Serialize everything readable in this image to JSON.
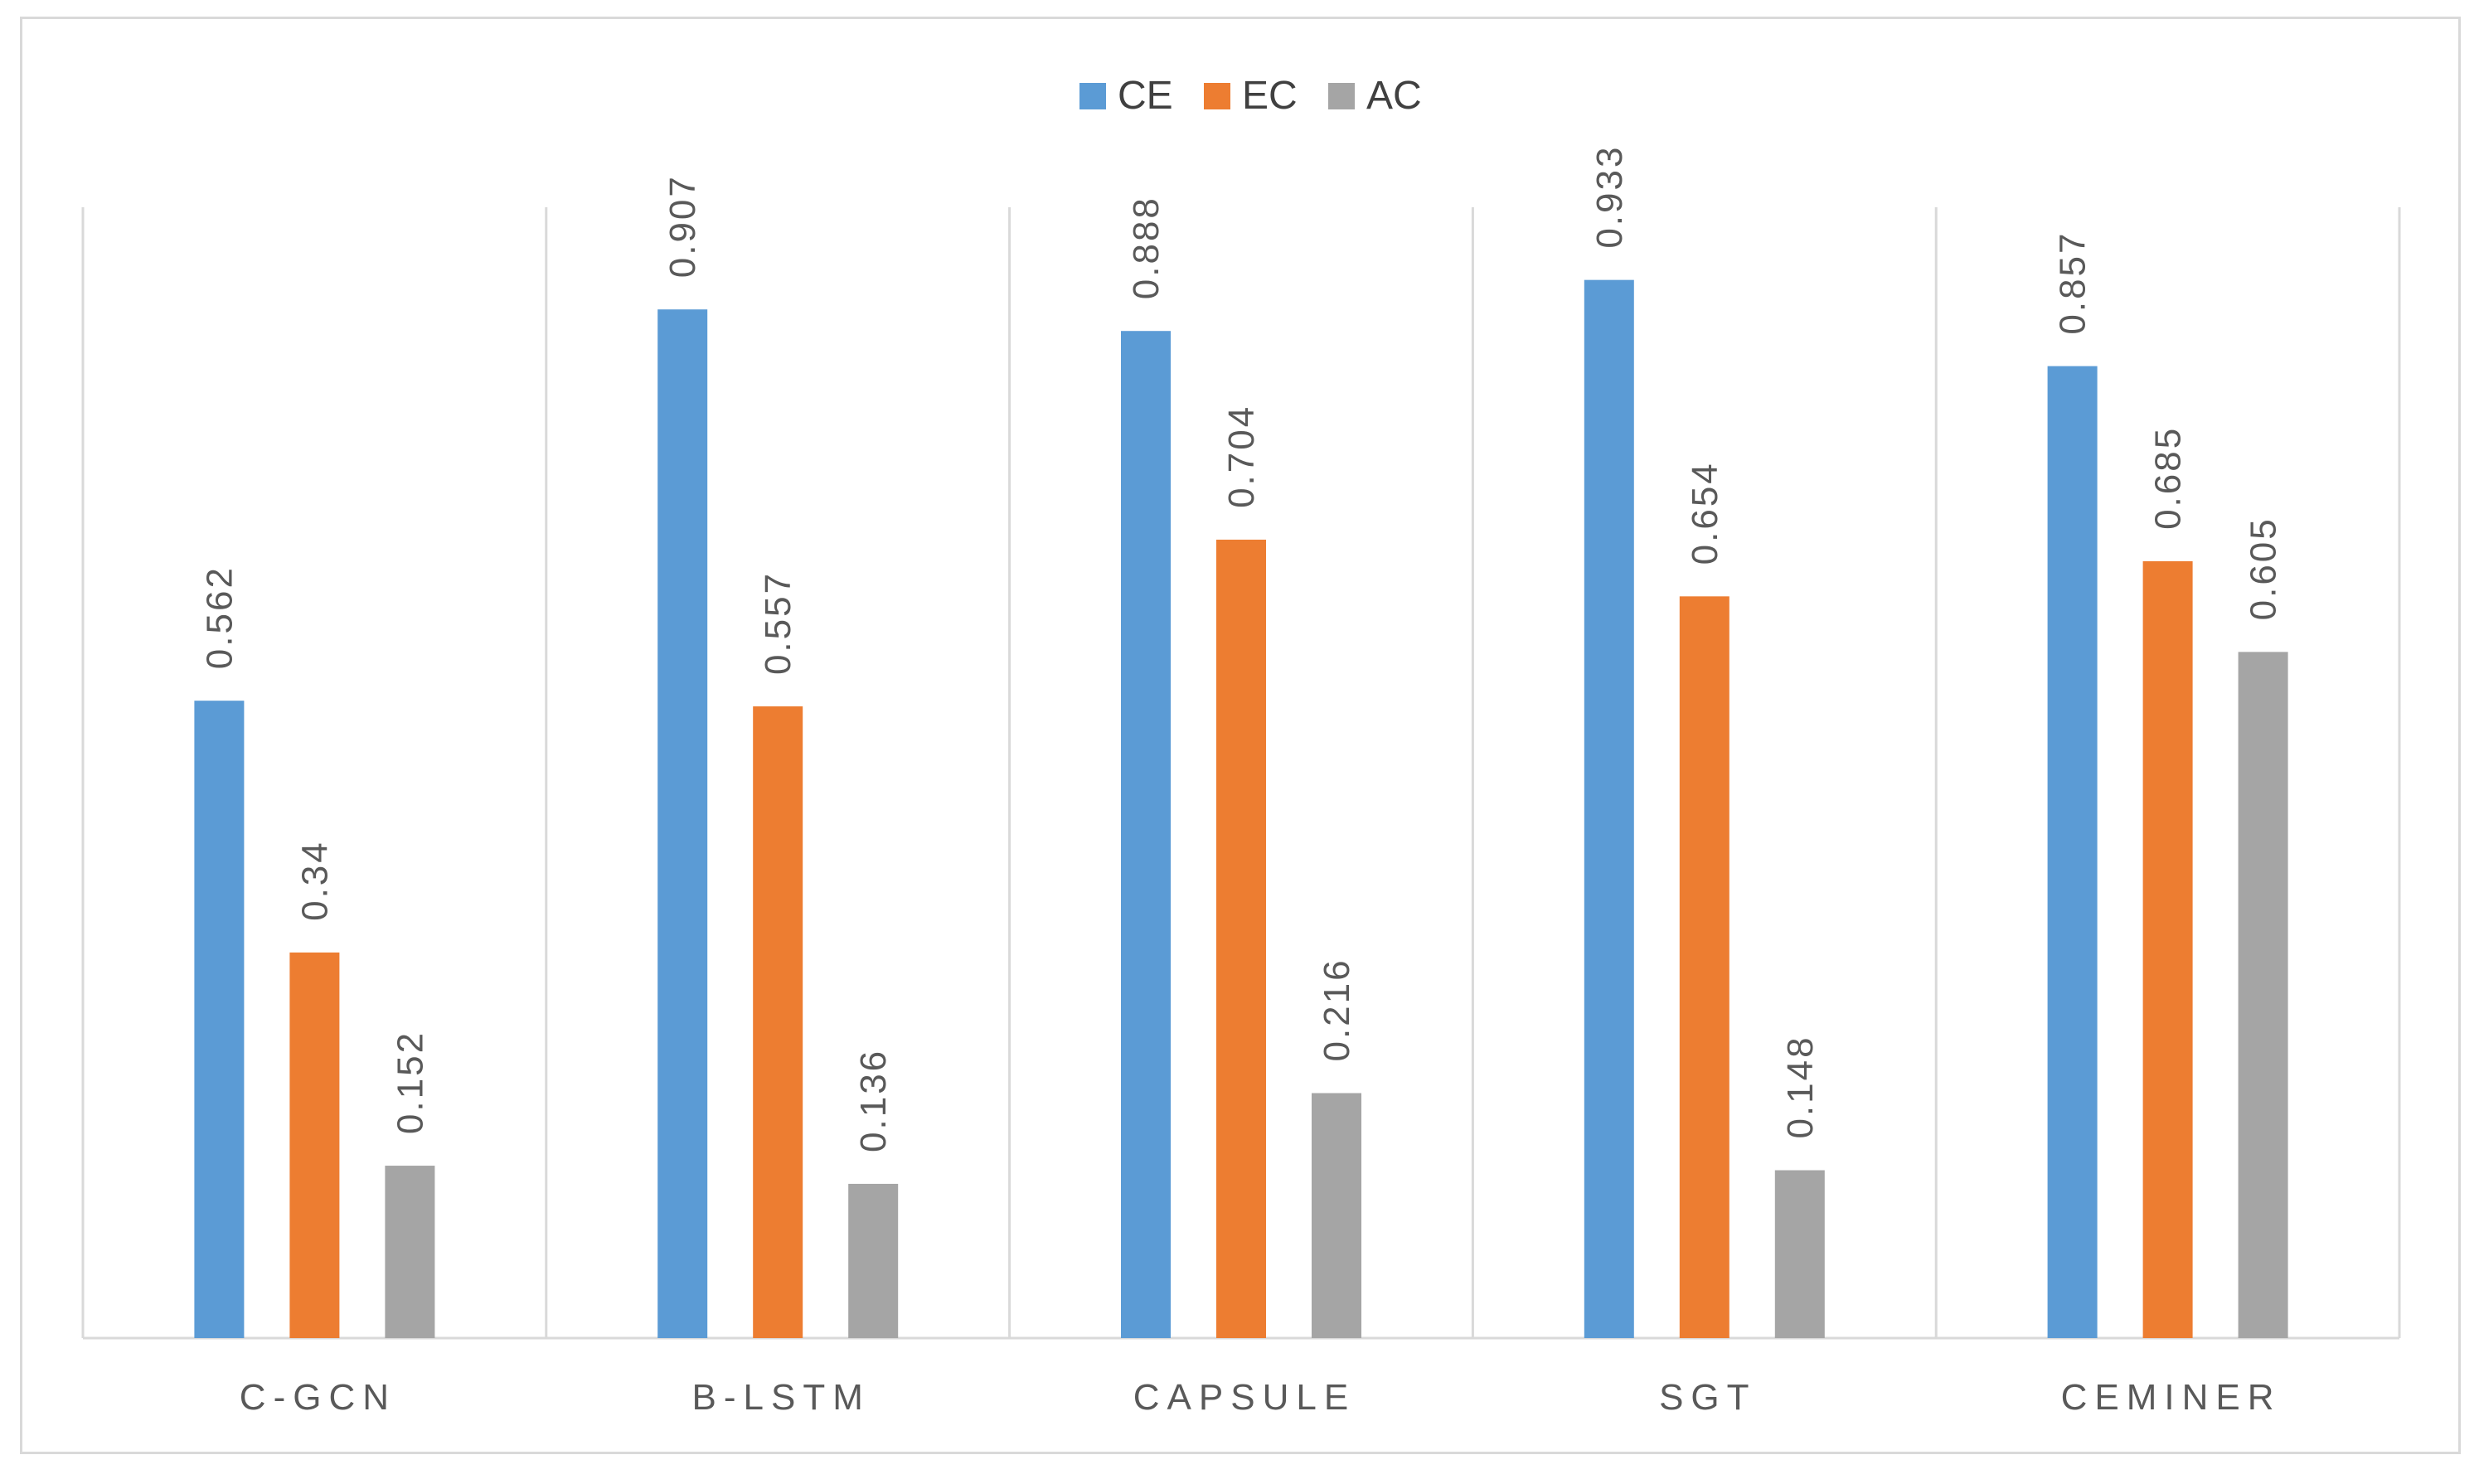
{
  "chart_data": {
    "type": "bar",
    "categories": [
      "C-GCN",
      "B-LSTM",
      "CAPSULE",
      "SGT",
      "CEMINER"
    ],
    "series": [
      {
        "name": "CE",
        "color": "#5b9bd5",
        "values": [
          0.562,
          0.907,
          0.888,
          0.933,
          0.857
        ],
        "labels": [
          "0.562",
          "0.907",
          "0.888",
          "0.933",
          "0.857"
        ]
      },
      {
        "name": "EC",
        "color": "#ed7d31",
        "values": [
          0.34,
          0.557,
          0.704,
          0.654,
          0.685
        ],
        "labels": [
          "0.34",
          "0.557",
          "0.704",
          "0.654",
          "0.685"
        ]
      },
      {
        "name": "AC",
        "color": "#a5a5a5",
        "values": [
          0.152,
          0.136,
          0.216,
          0.148,
          0.605
        ],
        "labels": [
          "0.152",
          "0.136",
          "0.216",
          "0.148",
          "0.605"
        ]
      }
    ],
    "ylim": [
      0,
      1
    ],
    "legend_position": "top-center",
    "gridlines": "vertical category separators",
    "axis_color": "#d9d9d9"
  }
}
